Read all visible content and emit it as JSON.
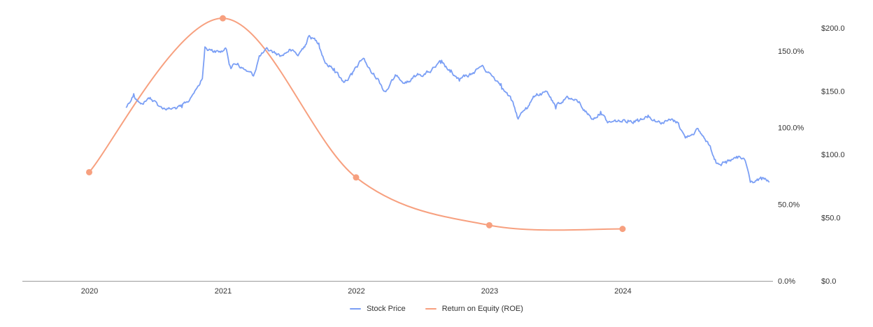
{
  "chart_data": {
    "type": "line",
    "x_axis": {
      "type": "date",
      "ticks": [
        "2020",
        "2021",
        "2022",
        "2023",
        "2024"
      ],
      "range": [
        "2019-07-01",
        "2025-02-15"
      ]
    },
    "y_axis_left": {
      "label": "",
      "ticks": [
        "0.0%",
        "50.0%",
        "100.0%",
        "150.0%"
      ],
      "range": [
        0,
        165
      ]
    },
    "y_axis_right": {
      "label": "",
      "ticks": [
        "$0.0",
        "$50.0",
        "$100.0",
        "$150.0",
        "$200.0"
      ],
      "range": [
        0,
        200
      ]
    },
    "grid": false,
    "legend_position": "bottom",
    "series": [
      {
        "name": "Stock Price",
        "axis": "right",
        "color": "#7b9ff5",
        "points": [
          [
            "2020-04-10",
            137
          ],
          [
            "2020-05-01",
            148
          ],
          [
            "2020-05-20",
            140
          ],
          [
            "2020-06-15",
            145
          ],
          [
            "2020-07-10",
            138
          ],
          [
            "2020-08-10",
            136
          ],
          [
            "2020-09-10",
            137
          ],
          [
            "2020-10-01",
            143
          ],
          [
            "2020-10-20",
            152
          ],
          [
            "2020-11-05",
            160
          ],
          [
            "2020-11-12",
            185
          ],
          [
            "2020-12-01",
            183
          ],
          [
            "2020-12-20",
            181
          ],
          [
            "2021-01-10",
            183
          ],
          [
            "2021-01-20",
            170
          ],
          [
            "2021-02-10",
            172
          ],
          [
            "2021-03-01",
            167
          ],
          [
            "2021-03-25",
            162
          ],
          [
            "2021-04-10",
            178
          ],
          [
            "2021-05-05",
            182
          ],
          [
            "2021-06-10",
            178
          ],
          [
            "2021-07-01",
            183
          ],
          [
            "2021-07-25",
            178
          ],
          [
            "2021-08-10",
            185
          ],
          [
            "2021-08-25",
            194
          ],
          [
            "2021-09-20",
            188
          ],
          [
            "2021-10-10",
            172
          ],
          [
            "2021-11-01",
            168
          ],
          [
            "2021-11-25",
            158
          ],
          [
            "2021-12-20",
            163
          ],
          [
            "2022-01-20",
            176
          ],
          [
            "2022-02-10",
            165
          ],
          [
            "2022-03-01",
            160
          ],
          [
            "2022-03-20",
            150
          ],
          [
            "2022-04-20",
            162
          ],
          [
            "2022-05-20",
            158
          ],
          [
            "2022-06-20",
            163
          ],
          [
            "2022-07-20",
            165
          ],
          [
            "2022-08-20",
            172
          ],
          [
            "2022-09-15",
            165
          ],
          [
            "2022-10-10",
            158
          ],
          [
            "2022-11-10",
            163
          ],
          [
            "2022-12-10",
            170
          ],
          [
            "2023-01-05",
            163
          ],
          [
            "2023-02-01",
            156
          ],
          [
            "2023-03-01",
            143
          ],
          [
            "2023-03-20",
            128
          ],
          [
            "2023-04-10",
            137
          ],
          [
            "2023-05-10",
            148
          ],
          [
            "2023-06-10",
            148
          ],
          [
            "2023-07-01",
            136
          ],
          [
            "2023-08-01",
            146
          ],
          [
            "2023-09-01",
            141
          ],
          [
            "2023-10-10",
            128
          ],
          [
            "2023-11-01",
            134
          ],
          [
            "2023-11-20",
            125
          ],
          [
            "2023-12-15",
            126
          ],
          [
            "2024-01-15",
            127
          ],
          [
            "2024-02-10",
            128
          ],
          [
            "2024-03-10",
            131
          ],
          [
            "2024-04-10",
            126
          ],
          [
            "2024-05-10",
            127
          ],
          [
            "2024-06-01",
            125
          ],
          [
            "2024-06-20",
            113
          ],
          [
            "2024-07-20",
            120
          ],
          [
            "2024-08-20",
            110
          ],
          [
            "2024-09-10",
            96
          ],
          [
            "2024-10-10",
            93
          ],
          [
            "2024-11-10",
            97
          ],
          [
            "2024-12-01",
            95
          ],
          [
            "2024-12-15",
            78
          ],
          [
            "2025-01-15",
            80
          ],
          [
            "2025-02-05",
            78
          ]
        ]
      },
      {
        "name": "Return on Equity (ROE)",
        "axis": "left",
        "color": "#f7a07f",
        "points": [
          [
            "2019-12-31",
            70.9
          ],
          [
            "2020-12-31",
            171.3
          ],
          [
            "2021-12-31",
            67.5
          ],
          [
            "2022-12-31",
            36.3
          ],
          [
            "2023-12-31",
            33.9
          ]
        ]
      }
    ]
  }
}
